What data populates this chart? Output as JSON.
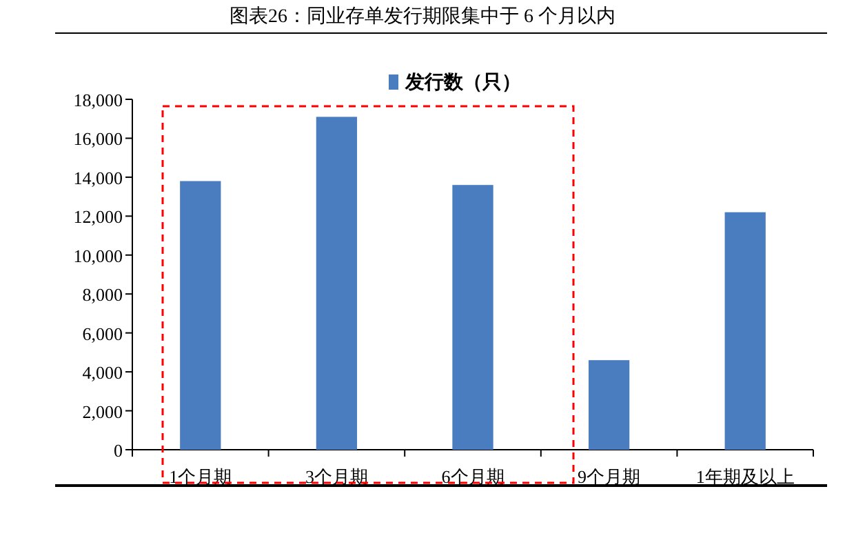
{
  "chart_data": {
    "type": "bar",
    "title": "图表26：同业存单发行期限集中于 6 个月以内",
    "categories": [
      "1个月期",
      "3个月期",
      "6个月期",
      "9个月期",
      "1年期及以上"
    ],
    "series": [
      {
        "name": "发行数（只）",
        "color": "#4a7cc0",
        "values": [
          13800,
          17100,
          13600,
          4600,
          12200
        ]
      }
    ],
    "ylim": [
      0,
      18000
    ],
    "yticks": [
      {
        "value": 0,
        "label": "0"
      },
      {
        "value": 2000,
        "label": "2,000"
      },
      {
        "value": 4000,
        "label": "4,000"
      },
      {
        "value": 6000,
        "label": "6,000"
      },
      {
        "value": 8000,
        "label": "8,000"
      },
      {
        "value": 10000,
        "label": "10,000"
      },
      {
        "value": 12000,
        "label": "12,000"
      },
      {
        "value": 14000,
        "label": "14,000"
      },
      {
        "value": 16000,
        "label": "16,000"
      },
      {
        "value": 18000,
        "label": "18,000"
      }
    ],
    "legend": "top",
    "grid": false
  }
}
